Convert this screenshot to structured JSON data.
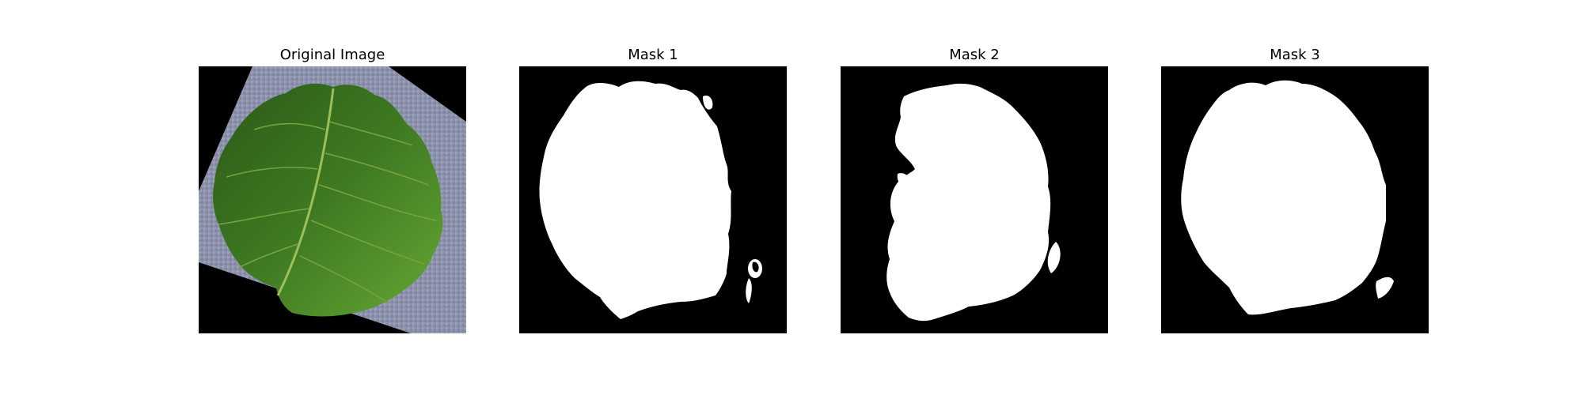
{
  "figure": {
    "panels": [
      {
        "title": "Original Image",
        "content": "photo",
        "subject": "strawberry leaf on grey surface"
      },
      {
        "title": "Mask 1",
        "content": "mask"
      },
      {
        "title": "Mask 2",
        "content": "mask"
      },
      {
        "title": "Mask 3",
        "content": "mask"
      }
    ],
    "colors": {
      "background": "#ffffff",
      "mask_background": "#000000",
      "mask_foreground": "#ffffff",
      "surface": "#8d90aa",
      "leaf_dark": "#2f5f1a",
      "leaf_light": "#5a9a2c"
    }
  }
}
